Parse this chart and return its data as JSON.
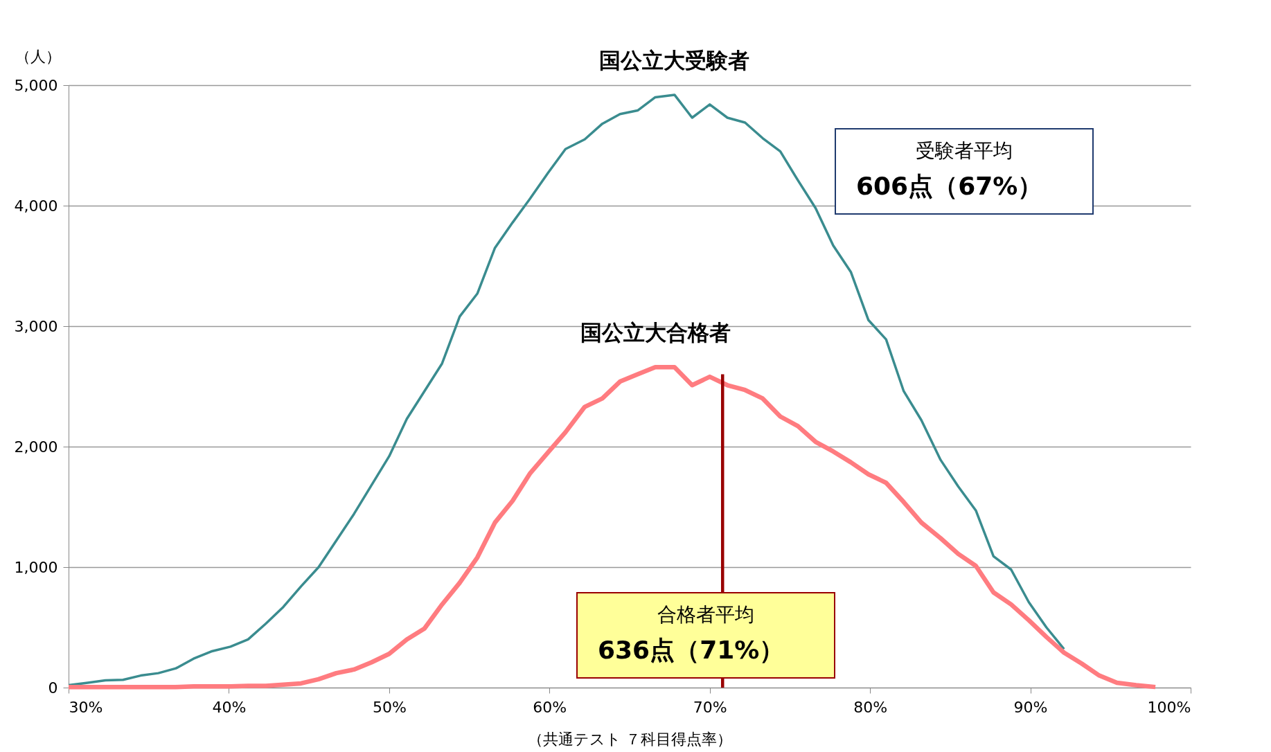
{
  "chart_data": {
    "type": "line",
    "xlabel": "（共通テスト ７科目得点率）",
    "ylabel": "（人）",
    "xlim": [
      30,
      100
    ],
    "xticks": [
      {
        "value": 30,
        "label": "30%"
      },
      {
        "value": 40,
        "label": "40%"
      },
      {
        "value": 50,
        "label": "50%"
      },
      {
        "value": 60,
        "label": "60%"
      },
      {
        "value": 70,
        "label": "70%"
      },
      {
        "value": 80,
        "label": "80%"
      },
      {
        "value": 90,
        "label": "90%"
      },
      {
        "value": 100,
        "label": "100%"
      }
    ],
    "ylim": [
      0,
      5000
    ],
    "yticks": [
      0,
      {
        "value": 1000,
        "label": "1,000"
      },
      {
        "value": 2000,
        "label": "2,000"
      },
      {
        "value": 3000,
        "label": "3,000"
      },
      {
        "value": 4000,
        "label": "4,000"
      },
      {
        "value": 5000,
        "label": "5,000"
      }
    ],
    "grid": "y",
    "marker": "none",
    "line_style": "solid",
    "annotations": [
      "受験者平均",
      "606点（67%）",
      "合格者平均",
      "636点（71%）"
    ],
    "series": [
      {
        "name": "国公立大受験者",
        "color": "#3a8c8f",
        "x": [
          30,
          31.2,
          32.3,
          33.4,
          34.5,
          35.6,
          36.7,
          37.8,
          38.9,
          40.1,
          41.2,
          42.3,
          43.4,
          44.5,
          45.6,
          46.7,
          47.8,
          48.9,
          50.0,
          51.1,
          52.2,
          53.3,
          54.4,
          55.5,
          56.6,
          57.7,
          58.8,
          59.9,
          61.0,
          62.2,
          63.3,
          64.4,
          65.5,
          66.6,
          67.8,
          68.9,
          70.0,
          71.1,
          72.2,
          73.3,
          74.4,
          75.5,
          76.6,
          77.7,
          78.8,
          79.9,
          81.0,
          82.1,
          83.2,
          84.4,
          85.5,
          86.6,
          87.7,
          88.8,
          89.9,
          91.0,
          92.1
        ],
        "values": [
          20,
          40,
          60,
          65,
          100,
          120,
          160,
          240,
          300,
          340,
          400,
          530,
          670,
          840,
          1000,
          1220,
          1440,
          1680,
          1920,
          2230,
          2460,
          2690,
          3080,
          3270,
          3650,
          3860,
          4060,
          4270,
          4470,
          4550,
          4680,
          4760,
          4790,
          4900,
          4920,
          4730,
          4840,
          4730,
          4690,
          4560,
          4450,
          4210,
          3980,
          3670,
          3450,
          3050,
          2890,
          2460,
          2220,
          1890,
          1670,
          1470,
          1090,
          980,
          710,
          500,
          320
        ]
      },
      {
        "name": "国公立大合格者",
        "color": "#ff7c80",
        "x": [
          30,
          31.2,
          32.3,
          33.4,
          34.5,
          35.6,
          36.7,
          37.8,
          38.9,
          40.1,
          41.2,
          42.3,
          43.4,
          44.5,
          45.6,
          46.7,
          47.8,
          48.9,
          50.0,
          51.1,
          52.2,
          53.3,
          54.4,
          55.5,
          56.6,
          57.7,
          58.8,
          59.9,
          61.0,
          62.2,
          63.3,
          64.4,
          65.5,
          66.6,
          67.8,
          68.9,
          70.0,
          71.1,
          72.2,
          73.3,
          74.4,
          75.5,
          76.6,
          77.7,
          78.8,
          79.9,
          81.0,
          82.1,
          83.2,
          84.4,
          85.5,
          86.6,
          87.7,
          88.8,
          89.9,
          91.0,
          92.1,
          93.2,
          94.3,
          95.4,
          96.6,
          97.8
        ],
        "values": [
          5,
          5,
          5,
          5,
          5,
          5,
          5,
          10,
          10,
          10,
          15,
          15,
          25,
          35,
          70,
          120,
          150,
          210,
          280,
          400,
          490,
          690,
          870,
          1080,
          1370,
          1550,
          1780,
          1950,
          2120,
          2330,
          2400,
          2540,
          2600,
          2660,
          2660,
          2510,
          2580,
          2510,
          2470,
          2400,
          2250,
          2170,
          2040,
          1960,
          1870,
          1770,
          1700,
          1540,
          1370,
          1240,
          1110,
          1010,
          790,
          690,
          560,
          420,
          290,
          200,
          100,
          40,
          20,
          5
        ]
      },
      {
        "color": "#990000",
        "x": [
          70.8,
          70.8
        ],
        "values": [
          0,
          2600
        ]
      }
    ]
  }
}
